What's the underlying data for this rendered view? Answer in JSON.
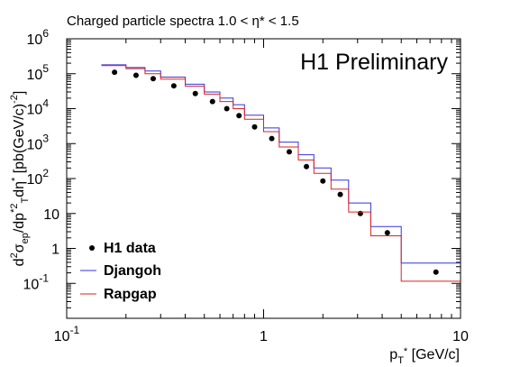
{
  "chart_data": {
    "type": "scatter",
    "title": "Charged particle spectra 1.0 < η* < 1.5",
    "annotation": "H1 Preliminary",
    "xlabel": "p*T [GeV/c]",
    "ylabel": "d²σep/dp*T²dη* [pb(GeV/c)⁻²]",
    "xscale": "log",
    "yscale": "log",
    "xlim": [
      0.1,
      10
    ],
    "ylim": [
      0.01,
      1000000
    ],
    "grid": false,
    "legend_position": "bottom-left",
    "x_ticks": [
      {
        "value": 0.1,
        "base": "10",
        "exp": "-1"
      },
      {
        "value": 1,
        "base": "1",
        "exp": ""
      },
      {
        "value": 10,
        "base": "10",
        "exp": ""
      }
    ],
    "y_ticks": [
      {
        "value": 0.1,
        "base": "10",
        "exp": "-1"
      },
      {
        "value": 1,
        "base": "1",
        "exp": ""
      },
      {
        "value": 10,
        "base": "10",
        "exp": ""
      },
      {
        "value": 100,
        "base": "10",
        "exp": "2"
      },
      {
        "value": 1000,
        "base": "10",
        "exp": "3"
      },
      {
        "value": 10000,
        "base": "10",
        "exp": "4"
      },
      {
        "value": 100000,
        "base": "10",
        "exp": "5"
      },
      {
        "value": 1000000,
        "base": "10",
        "exp": "6"
      }
    ],
    "bin_edges": [
      0.15,
      0.2,
      0.25,
      0.3,
      0.4,
      0.5,
      0.6,
      0.7,
      0.8,
      1.0,
      1.2,
      1.5,
      1.8,
      2.2,
      2.7,
      3.5,
      5.0,
      10.0
    ],
    "series": [
      {
        "name": "H1 data",
        "style": "points",
        "color": "#000000",
        "x": [
          0.175,
          0.225,
          0.275,
          0.35,
          0.45,
          0.55,
          0.65,
          0.75,
          0.9,
          1.1,
          1.35,
          1.65,
          2.0,
          2.45,
          3.1,
          4.25,
          7.5
        ],
        "values": [
          110000,
          90000,
          72000,
          45000,
          27000,
          16000,
          10000,
          6300,
          3000,
          1400,
          580,
          220,
          85,
          35,
          10,
          2.8,
          0.21
        ]
      },
      {
        "name": "Djangoh",
        "style": "histogram",
        "color": "#3333dd",
        "values": [
          180000,
          150000,
          120000,
          80000,
          50000,
          30000,
          20000,
          13000,
          6500,
          2800,
          1100,
          480,
          200,
          90,
          20,
          4.2,
          0.38
        ]
      },
      {
        "name": "Rapgap",
        "style": "histogram",
        "color": "#dd2222",
        "values": [
          170000,
          140000,
          100000,
          70000,
          44000,
          26000,
          16000,
          10000,
          5000,
          2200,
          800,
          340,
          140,
          50,
          11,
          2.3,
          0.115
        ]
      }
    ]
  }
}
